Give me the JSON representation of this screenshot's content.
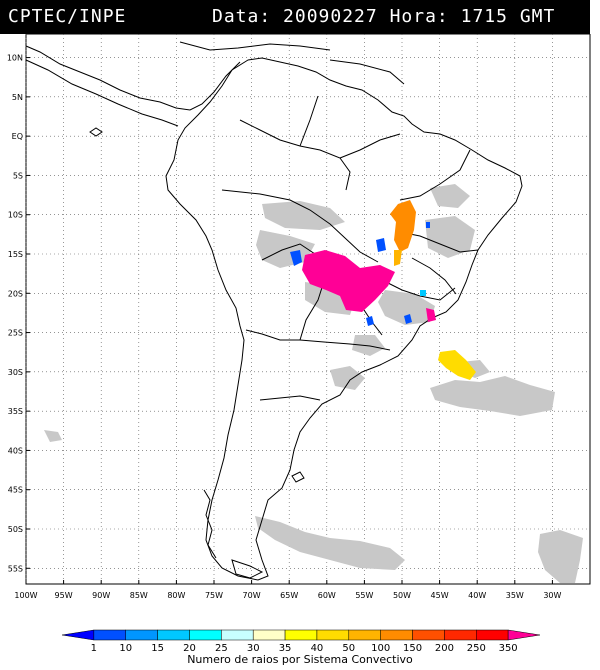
{
  "header": {
    "source": "CPTEC/INPE",
    "date_label": "Data:",
    "date_value": "20090227",
    "time_label": "Hora:",
    "time_value": "1715",
    "timezone": "GMT"
  },
  "map": {
    "lon_range": [
      -100,
      -25
    ],
    "lat_range": [
      -57,
      13
    ],
    "lat_ticks": [
      "10N",
      "5N",
      "EQ",
      "5S",
      "10S",
      "15S",
      "20S",
      "25S",
      "30S",
      "35S",
      "40S",
      "45S",
      "50S",
      "55S"
    ],
    "lat_values": [
      10,
      5,
      0,
      -5,
      -10,
      -15,
      -20,
      -25,
      -30,
      -35,
      -40,
      -45,
      -50,
      -55
    ],
    "lon_ticks": [
      "100W",
      "95W",
      "90W",
      "85W",
      "80W",
      "75W",
      "70W",
      "65W",
      "60W",
      "55W",
      "50W",
      "45W",
      "40W",
      "35W",
      "30W"
    ],
    "lon_values": [
      -100,
      -95,
      -90,
      -85,
      -80,
      -75,
      -70,
      -65,
      -60,
      -55,
      -50,
      -45,
      -40,
      -35,
      -30
    ],
    "colors": {
      "cloud": "#c8c8c8",
      "land_outline": "#000000",
      "grid": "#555555"
    }
  },
  "colorbar": {
    "labels": [
      "1",
      "10",
      "15",
      "20",
      "25",
      "30",
      "35",
      "40",
      "50",
      "100",
      "150",
      "200",
      "250",
      "350"
    ],
    "colors": [
      "#0000ff",
      "#0050ff",
      "#0096ff",
      "#00c8ff",
      "#00ffff",
      "#c8ffff",
      "#ffffc8",
      "#ffff00",
      "#ffdc00",
      "#ffb400",
      "#ff8c00",
      "#ff5000",
      "#ff2800",
      "#ff0000",
      "#ff0096"
    ],
    "caption": "Numero de raios por Sistema Convectivo"
  }
}
